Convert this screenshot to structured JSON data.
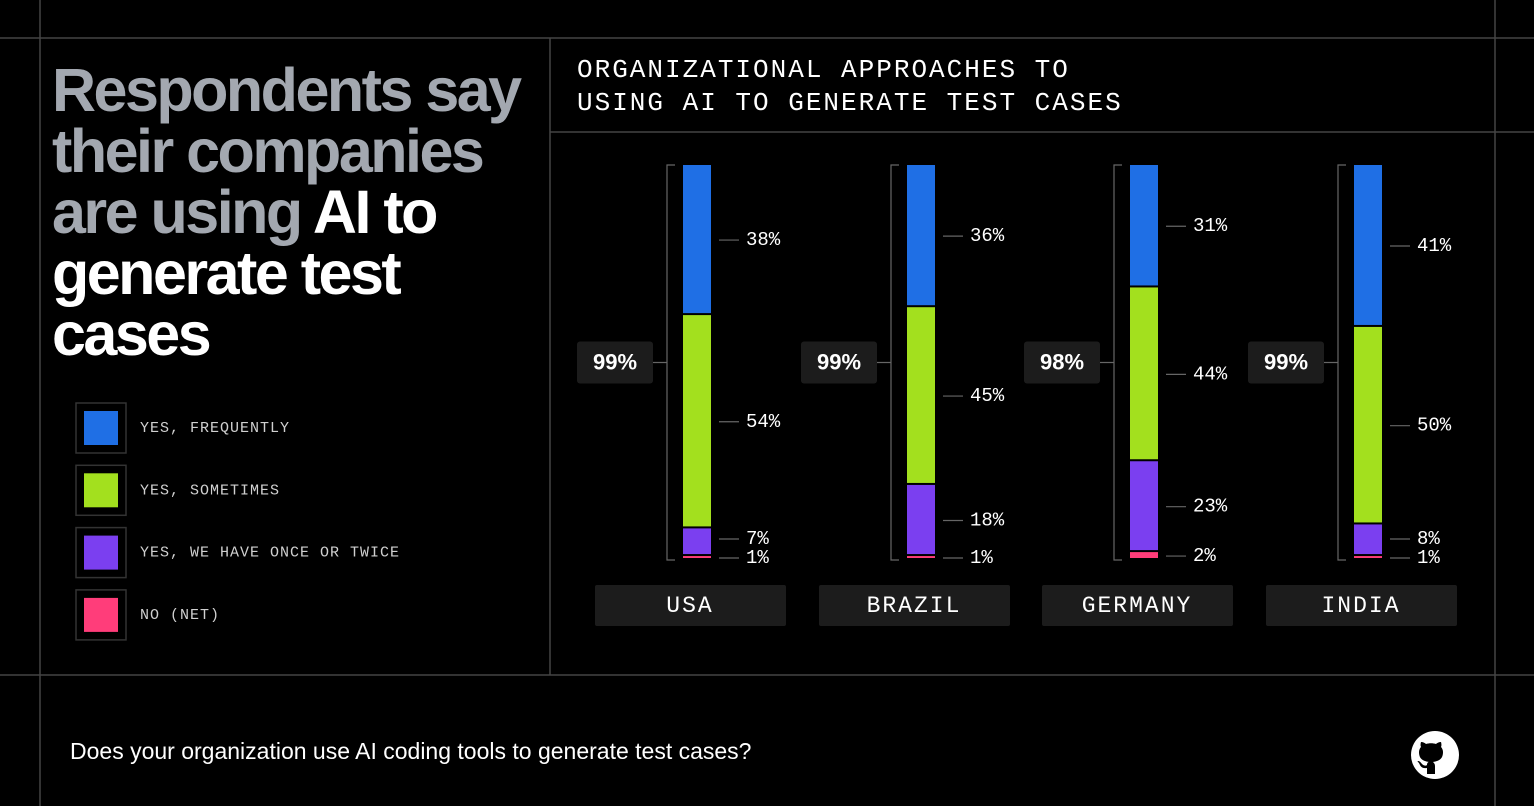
{
  "headline": {
    "muted": "Respondents say their companies are using",
    "highlight": "AI to generate test cases"
  },
  "footer": {
    "question": "Does your organization use AI coding tools to generate test cases?"
  },
  "chart_data": {
    "type": "bar",
    "stacked": true,
    "title": "ORGANIZATIONAL APPROACHES TO USING AI TO GENERATE TEST CASES",
    "categories": [
      "USA",
      "BRAZIL",
      "GERMANY",
      "INDIA"
    ],
    "series": [
      {
        "name": "YES, FREQUENTLY",
        "color": "#1f6fe5",
        "values": [
          38,
          36,
          31,
          41
        ],
        "value_labels": [
          "38%",
          "36%",
          "31%",
          "41%"
        ]
      },
      {
        "name": "YES, SOMETIMES",
        "color": "#a3e01e",
        "values": [
          54,
          45,
          44,
          50
        ],
        "value_labels": [
          "54%",
          "45%",
          "44%",
          "50%"
        ]
      },
      {
        "name": "YES, WE HAVE ONCE OR TWICE",
        "color": "#7b3ff0",
        "values": [
          7,
          18,
          23,
          8
        ],
        "value_labels": [
          "7%",
          "18%",
          "23%",
          "8%"
        ]
      },
      {
        "name": "NO (NET)",
        "color": "#ff3d7a",
        "values": [
          1,
          1,
          2,
          1
        ],
        "value_labels": [
          "1%",
          "1%",
          "2%",
          "1%"
        ]
      }
    ],
    "totals": {
      "values": [
        99,
        99,
        98,
        99
      ],
      "value_labels": [
        "99%",
        "99%",
        "98%",
        "99%"
      ]
    }
  }
}
